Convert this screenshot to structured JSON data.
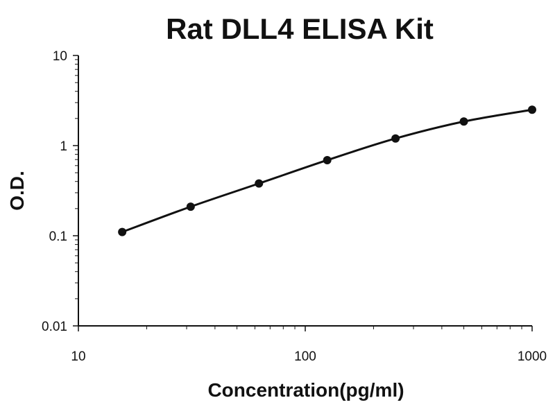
{
  "chart_data": {
    "type": "line",
    "title": "Rat DLL4 ELISA Kit",
    "xlabel": "Concentration(pg/ml)",
    "ylabel": "O.D.",
    "x_scale": "log",
    "y_scale": "log",
    "xlim": [
      10,
      1000
    ],
    "ylim": [
      0.01,
      10
    ],
    "x_ticks": [
      10,
      100,
      1000
    ],
    "x_tick_labels": [
      "10",
      "100",
      "1000"
    ],
    "y_ticks": [
      0.01,
      0.1,
      1,
      10
    ],
    "y_tick_labels": [
      "0.01",
      "0.1",
      "1",
      "10"
    ],
    "grid": false,
    "legend": "none",
    "series": [
      {
        "x": [
          15.6,
          31.25,
          62.5,
          125,
          250,
          500,
          1000
        ],
        "y": [
          0.11,
          0.21,
          0.38,
          0.69,
          1.2,
          1.85,
          2.5
        ],
        "markers": true,
        "smooth_line": true
      }
    ],
    "colors": {
      "line": "#111111",
      "marker": "#111111",
      "axis": "#111111"
    }
  }
}
